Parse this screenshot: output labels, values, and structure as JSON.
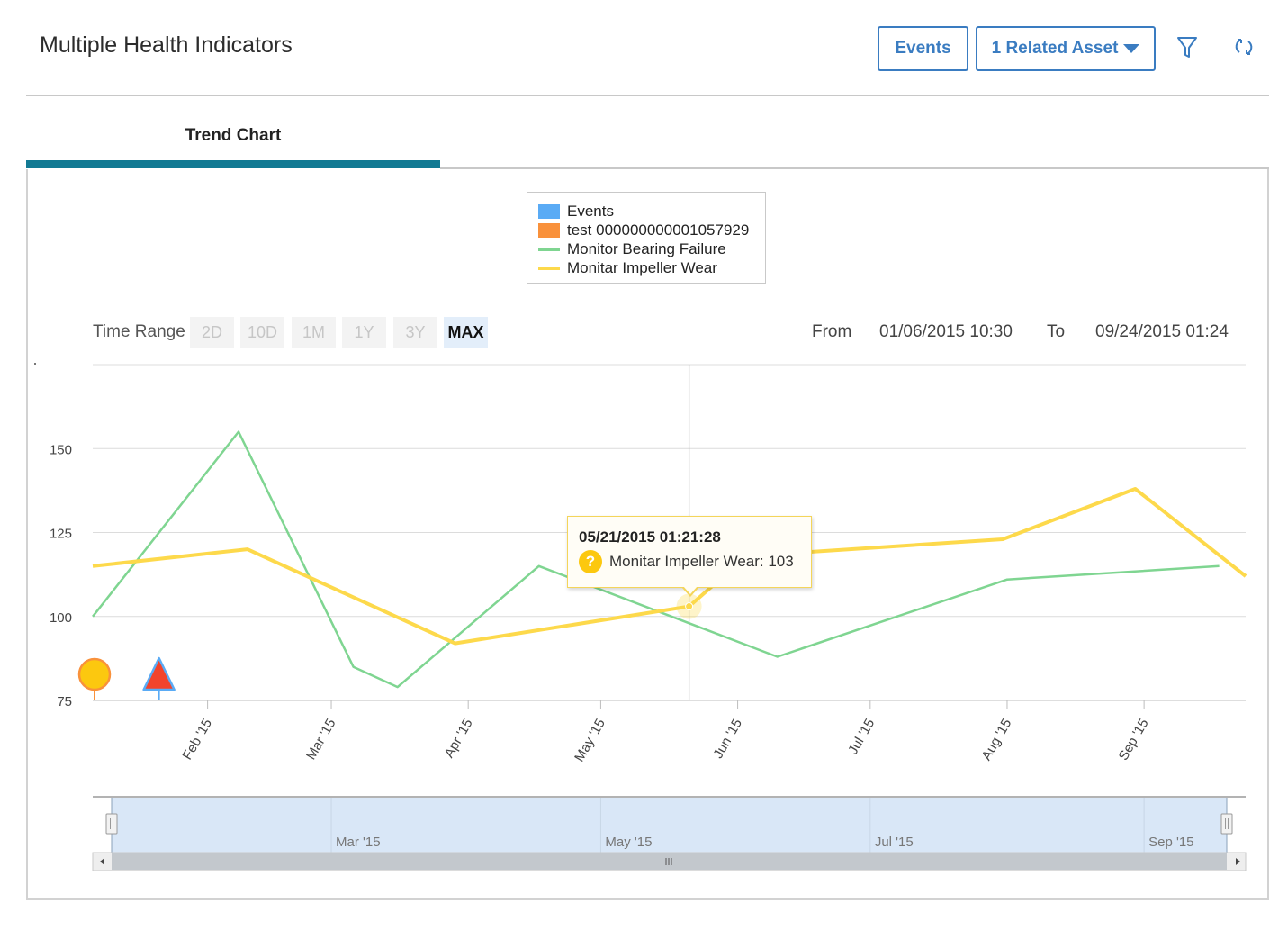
{
  "header": {
    "title": "Multiple Health Indicators",
    "events_button": "Events",
    "related_asset_button": "1 Related Asset"
  },
  "tabs": [
    {
      "label": "Trend Chart",
      "active": true
    }
  ],
  "time_range": {
    "label": "Time Range",
    "options": [
      "2D",
      "10D",
      "1M",
      "1Y",
      "3Y",
      "MAX"
    ],
    "selected": "MAX",
    "from_label": "From",
    "from_value": "01/06/2015 10:30",
    "to_label": "To",
    "to_value": "09/24/2015 01:24"
  },
  "tooltip": {
    "date": "05/21/2015 01:21:28",
    "text": "Monitar Impeller Wear: 103",
    "icon": "question-icon"
  },
  "navigator": {
    "labels": [
      "Mar '15",
      "May '15",
      "Jul '15",
      "Sep '15"
    ]
  },
  "colors": {
    "events": "#5aabf5",
    "test": "#f9913b",
    "bearing": "#7fd591",
    "impeller": "#fdd94b",
    "accent": "#3a7cc1",
    "tab_underline": "#127a93"
  },
  "chart_data": {
    "type": "line",
    "x_type": "date",
    "xlim": [
      "2015-01-06",
      "2015-09-24"
    ],
    "ylim": [
      75,
      175
    ],
    "y_ticks": [
      75,
      100,
      125,
      150
    ],
    "x_ticks": [
      "Feb '15",
      "Mar '15",
      "Apr '15",
      "May '15",
      "Jun '15",
      "Jul '15",
      "Aug '15",
      "Sep '15"
    ],
    "grid": true,
    "legend": {
      "position": "top-center",
      "entries": [
        "Events",
        "test 000000000001057929",
        "Monitor Bearing Failure",
        "Monitar Impeller Wear"
      ]
    },
    "series": [
      {
        "name": "Monitor Bearing Failure",
        "color": "#7fd591",
        "x": [
          "2015-01-06",
          "2015-02-08",
          "2015-03-06",
          "2015-03-16",
          "2015-04-17",
          "2015-06-10",
          "2015-08-01",
          "2015-09-18"
        ],
        "y": [
          100,
          155,
          85,
          79,
          115,
          88,
          111,
          115
        ]
      },
      {
        "name": "Monitar Impeller Wear",
        "color": "#fdd94b",
        "x": [
          "2015-01-06",
          "2015-02-10",
          "2015-03-29",
          "2015-05-21",
          "2015-06-03",
          "2015-07-31",
          "2015-08-30",
          "2015-09-24"
        ],
        "y": [
          115,
          120,
          92,
          103,
          118,
          123,
          138,
          112
        ]
      }
    ],
    "markers": [
      {
        "name": "test 000000000001057929",
        "type": "circle",
        "x": "2015-01-06",
        "color": "#fcc80f"
      },
      {
        "name": "Events",
        "type": "triangle",
        "x": "2015-01-21",
        "color": "#f2442c"
      }
    ],
    "crosshair_x": "2015-05-21"
  }
}
